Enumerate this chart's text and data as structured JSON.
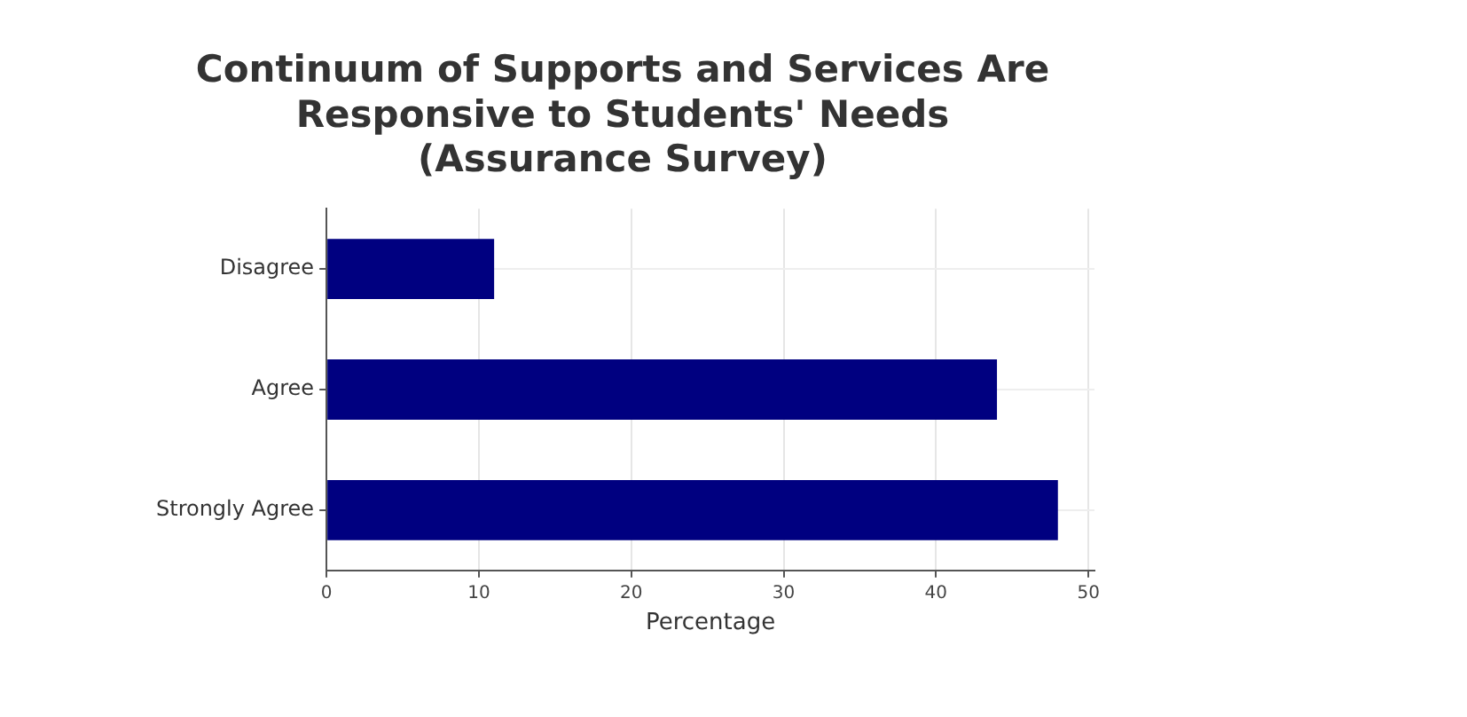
{
  "chart_data": {
    "type": "bar",
    "orientation": "horizontal",
    "title": "Continuum of Supports and Services Are\nResponsive to Students' Needs\n(Assurance Survey)",
    "xlabel": "Percentage",
    "categories": [
      "Disagree",
      "Agree",
      "Strongly Agree"
    ],
    "values": [
      11,
      44,
      48
    ],
    "color": "#000080",
    "xlim": [
      0,
      50.4
    ],
    "xticks": [
      0,
      10,
      20,
      30,
      40,
      50
    ],
    "grid": true
  }
}
